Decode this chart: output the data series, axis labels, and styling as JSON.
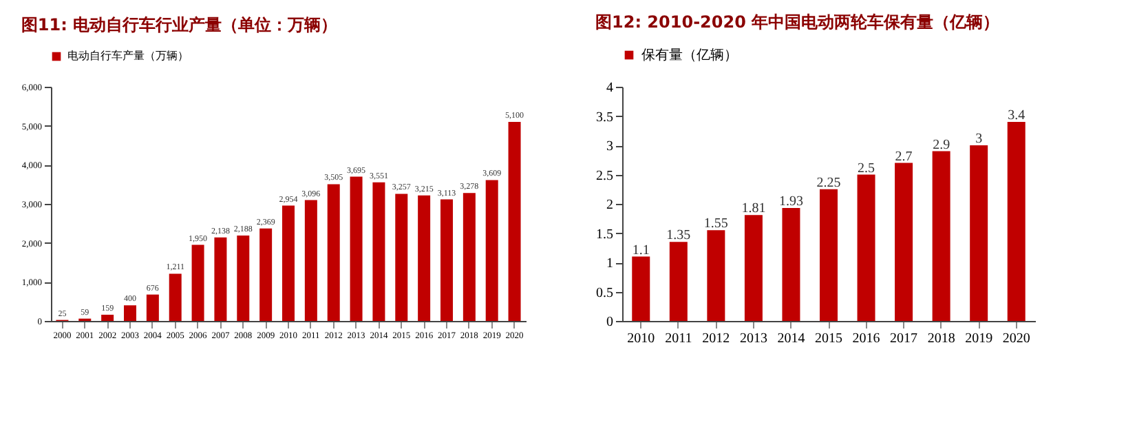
{
  "chart_data": [
    {
      "type": "bar",
      "title": "图11:   电动自行车行业产量（单位：万辆）",
      "categories": [
        "2000",
        "2001",
        "2002",
        "2003",
        "2004",
        "2005",
        "2006",
        "2007",
        "2008",
        "2009",
        "2010",
        "2011",
        "2012",
        "2013",
        "2014",
        "2015",
        "2016",
        "2017",
        "2018",
        "2019",
        "2020"
      ],
      "series": [
        {
          "name": "电动自行车产量（万辆）",
          "color": "#c00000",
          "values": [
            25,
            59,
            159,
            400,
            676,
            1211,
            1950,
            2138,
            2188,
            2369,
            2954,
            3096,
            3505,
            3695,
            3551,
            3257,
            3215,
            3113,
            3278,
            3609,
            5100
          ],
          "value_labels": [
            "25",
            "59",
            "159",
            "400",
            "676",
            "1,211",
            "1,950",
            "2,138",
            "2,188",
            "2,369",
            "2,954",
            "3,096",
            "3,505",
            "3,695",
            "3,551",
            "3,257",
            "3,215",
            "3,113",
            "3,278",
            "3,609",
            "5,100"
          ]
        }
      ],
      "ylim": [
        0,
        6000
      ],
      "yticks": [
        0,
        {
          "value": 1000,
          "label": "1,000"
        },
        {
          "value": 2000,
          "label": "2,000"
        },
        {
          "value": 3000,
          "label": "3,000"
        },
        {
          "value": 4000,
          "label": "4,000"
        },
        {
          "value": 5000,
          "label": "5,000"
        },
        {
          "value": 6000,
          "label": "6,000"
        }
      ],
      "legend": "top",
      "grid": false
    },
    {
      "type": "bar",
      "title": "图12:   2010-2020 年中国电动两轮车保有量（亿辆）",
      "categories": [
        "2010",
        "2011",
        "2012",
        "2013",
        "2014",
        "2015",
        "2016",
        "2017",
        "2018",
        "2019",
        "2020"
      ],
      "series": [
        {
          "name": "保有量（亿辆）",
          "color": "#c00000",
          "values": [
            1.1,
            1.35,
            1.55,
            1.81,
            1.93,
            2.25,
            2.5,
            2.7,
            2.9,
            3,
            3.4
          ]
        }
      ],
      "ylim": [
        0,
        4
      ],
      "yticks": [
        0,
        0.5,
        1,
        1.5,
        2,
        2.5,
        3,
        3.5,
        4
      ],
      "data_labels": true,
      "legend": "top",
      "grid": false
    }
  ]
}
